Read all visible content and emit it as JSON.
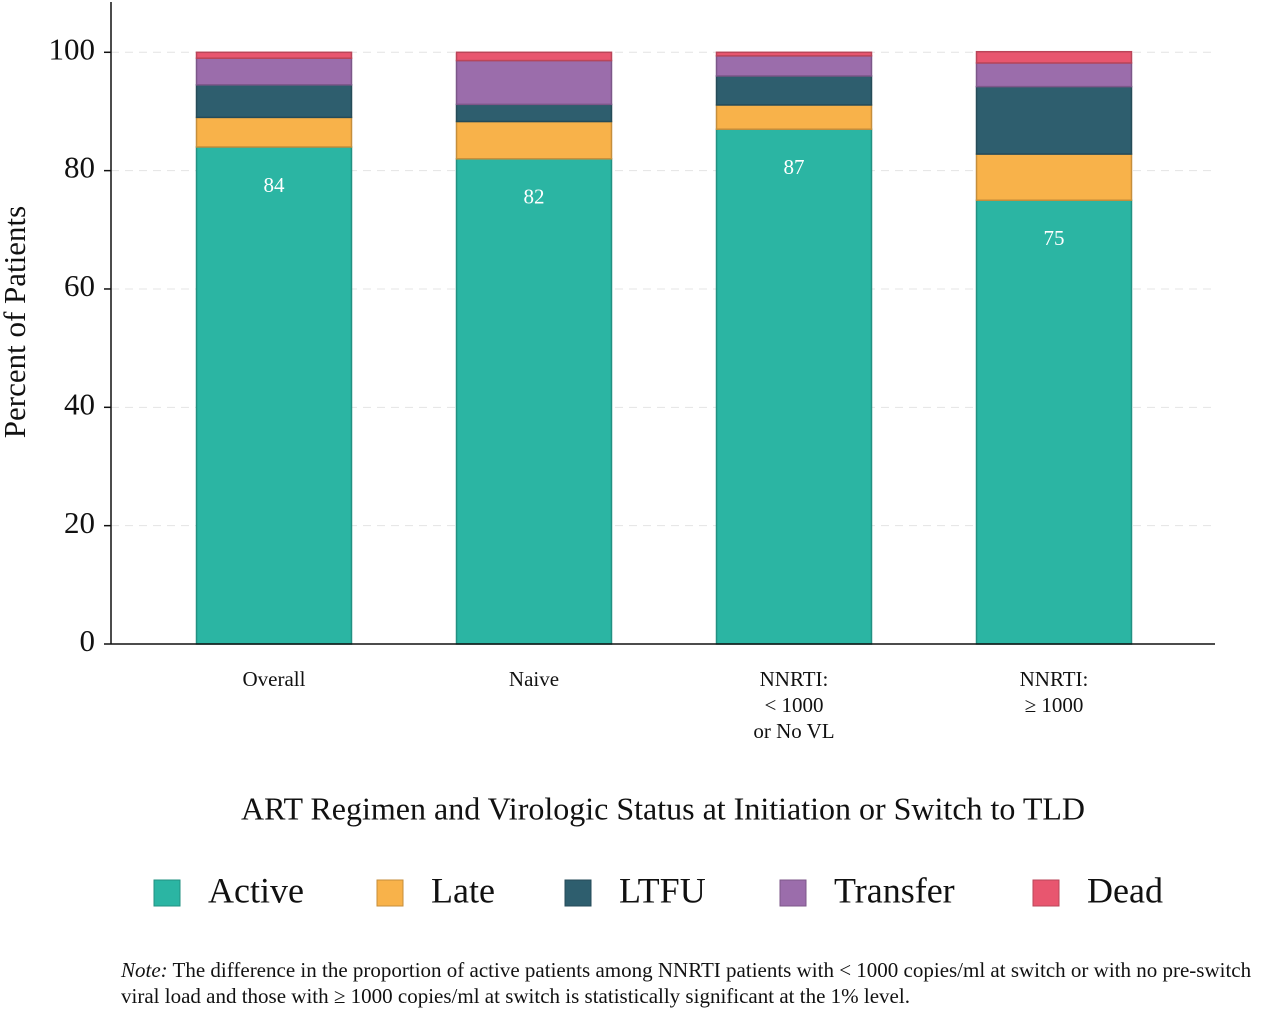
{
  "chart_data": {
    "type": "stacked_bar",
    "y_label": "Percent of Patients",
    "x_label": "ART Regimen and Virologic Status at Initiation or Switch to TLD",
    "categories": [
      "Overall",
      "Naive",
      "NNRTI:\n< 1000\nor No VL",
      "NNRTI:\n≥ 1000"
    ],
    "series": [
      {
        "name": "Active",
        "color": "#2bb5a3",
        "values": [
          84,
          82,
          87,
          75
        ]
      },
      {
        "name": "Late",
        "color": "#f8b24a",
        "values": [
          5,
          6.3,
          4.1,
          7.8
        ]
      },
      {
        "name": "LTFU",
        "color": "#2e5e6e",
        "values": [
          5.5,
          2.9,
          4.9,
          11.4
        ]
      },
      {
        "name": "Transfer",
        "color": "#9b6dab",
        "values": [
          4.5,
          7.4,
          3.4,
          4
        ]
      },
      {
        "name": "Dead",
        "color": "#e8566f",
        "values": [
          1,
          1.4,
          0.6,
          1.9
        ]
      }
    ],
    "labeled_series": 0,
    "ylim": [
      0,
      108.5
    ],
    "yticks": [
      0,
      20,
      40,
      60,
      80,
      100
    ],
    "grid": true,
    "legend": "bottom",
    "note_label": "Note:",
    "note": "The difference in the proportion of active patients among NNRTI patients with < 1000 copies/ml at switch or with no pre-switch viral load and those with ≥ 1000 copies/ml at switch is statistically significant at the 1% level."
  }
}
